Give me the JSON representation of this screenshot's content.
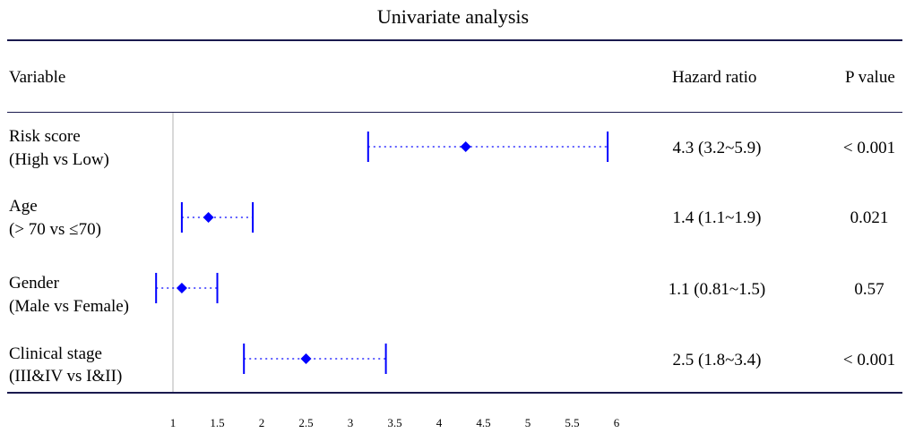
{
  "chart_data": {
    "type": "forest",
    "title": "Univariate analysis",
    "columns": {
      "variable": "Variable",
      "hazard_ratio": "Hazard ratio",
      "p_value": "P value"
    },
    "reference_line": 1,
    "xlim": [
      0.82,
      6
    ],
    "x_ticks": [
      "1",
      "1.5",
      "2",
      "2.5",
      "3",
      "3.5",
      "4",
      "4.5",
      "5",
      "5.5",
      "6"
    ],
    "rows": [
      {
        "label1": "Risk score",
        "label2": "(High vs Low)",
        "hr": 4.3,
        "lower": 3.2,
        "upper": 5.9,
        "hr_text": "4.3 (3.2~5.9)",
        "p_text": "< 0.001"
      },
      {
        "label1": "Age",
        "label2": "(> 70 vs ≤70)",
        "hr": 1.4,
        "lower": 1.1,
        "upper": 1.9,
        "hr_text": "1.4 (1.1~1.9)",
        "p_text": "0.021"
      },
      {
        "label1": "Gender",
        "label2": "(Male vs Female)",
        "hr": 1.1,
        "lower": 0.81,
        "upper": 1.5,
        "hr_text": "1.1 (0.81~1.5)",
        "p_text": "0.57"
      },
      {
        "label1": "Clinical stage",
        "label2": "(III&IV vs I&II)",
        "hr": 2.5,
        "lower": 1.8,
        "upper": 3.4,
        "hr_text": "2.5 (1.8~3.4)",
        "p_text": "< 0.001"
      }
    ],
    "colors": {
      "marker": "#0000ff",
      "rule": "#1a1a4e",
      "reference": "#bdbdbd"
    }
  }
}
